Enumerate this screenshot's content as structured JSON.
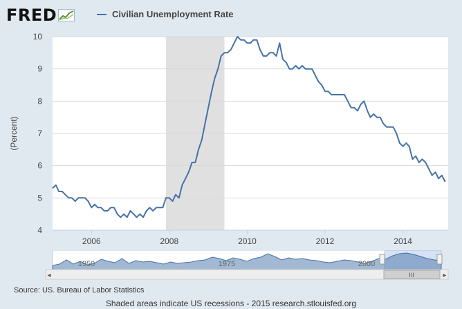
{
  "logo": {
    "text": "FRED"
  },
  "chart_data": {
    "type": "line",
    "ylabel": "(Percent)",
    "ylim": [
      4,
      10
    ],
    "yticks": [
      "4",
      "5",
      "6",
      "7",
      "8",
      "9",
      "10"
    ],
    "xlim": [
      "2005-01-01",
      "2015-03-01"
    ],
    "xticks": [
      {
        "date": "2006-01-01",
        "label": "2006"
      },
      {
        "date": "2008-01-01",
        "label": "2008"
      },
      {
        "date": "2010-01-01",
        "label": "2010"
      },
      {
        "date": "2012-01-01",
        "label": "2012"
      },
      {
        "date": "2014-01-01",
        "label": "2014"
      }
    ],
    "grid": true,
    "legend": "top-left",
    "recessions": [
      {
        "start": "2007-12-01",
        "end": "2009-06-01"
      }
    ],
    "series": [
      {
        "name": "Civilian Unemployment Rate",
        "color": "#4572a7",
        "x": [
          "2005-01",
          "2005-02",
          "2005-03",
          "2005-04",
          "2005-05",
          "2005-06",
          "2005-07",
          "2005-08",
          "2005-09",
          "2005-10",
          "2005-11",
          "2005-12",
          "2006-01",
          "2006-02",
          "2006-03",
          "2006-04",
          "2006-05",
          "2006-06",
          "2006-07",
          "2006-08",
          "2006-09",
          "2006-10",
          "2006-11",
          "2006-12",
          "2007-01",
          "2007-02",
          "2007-03",
          "2007-04",
          "2007-05",
          "2007-06",
          "2007-07",
          "2007-08",
          "2007-09",
          "2007-10",
          "2007-11",
          "2007-12",
          "2008-01",
          "2008-02",
          "2008-03",
          "2008-04",
          "2008-05",
          "2008-06",
          "2008-07",
          "2008-08",
          "2008-09",
          "2008-10",
          "2008-11",
          "2008-12",
          "2009-01",
          "2009-02",
          "2009-03",
          "2009-04",
          "2009-05",
          "2009-06",
          "2009-07",
          "2009-08",
          "2009-09",
          "2009-10",
          "2009-11",
          "2009-12",
          "2010-01",
          "2010-02",
          "2010-03",
          "2010-04",
          "2010-05",
          "2010-06",
          "2010-07",
          "2010-08",
          "2010-09",
          "2010-10",
          "2010-11",
          "2010-12",
          "2011-01",
          "2011-02",
          "2011-03",
          "2011-04",
          "2011-05",
          "2011-06",
          "2011-07",
          "2011-08",
          "2011-09",
          "2011-10",
          "2011-11",
          "2011-12",
          "2012-01",
          "2012-02",
          "2012-03",
          "2012-04",
          "2012-05",
          "2012-06",
          "2012-07",
          "2012-08",
          "2012-09",
          "2012-10",
          "2012-11",
          "2012-12",
          "2013-01",
          "2013-02",
          "2013-03",
          "2013-04",
          "2013-05",
          "2013-06",
          "2013-07",
          "2013-08",
          "2013-09",
          "2013-10",
          "2013-11",
          "2013-12",
          "2014-01",
          "2014-02",
          "2014-03",
          "2014-04",
          "2014-05",
          "2014-06",
          "2014-07",
          "2014-08",
          "2014-09",
          "2014-10",
          "2014-11",
          "2014-12",
          "2015-01",
          "2015-02"
        ],
        "y": [
          5.3,
          5.4,
          5.2,
          5.2,
          5.1,
          5.0,
          5.0,
          4.9,
          5.0,
          5.0,
          5.0,
          4.9,
          4.7,
          4.8,
          4.7,
          4.7,
          4.6,
          4.6,
          4.7,
          4.7,
          4.5,
          4.4,
          4.5,
          4.4,
          4.6,
          4.5,
          4.4,
          4.5,
          4.4,
          4.6,
          4.7,
          4.6,
          4.7,
          4.7,
          4.7,
          5.0,
          5.0,
          4.9,
          5.1,
          5.0,
          5.4,
          5.6,
          5.8,
          6.1,
          6.1,
          6.5,
          6.8,
          7.3,
          7.8,
          8.3,
          8.7,
          9.0,
          9.4,
          9.5,
          9.5,
          9.6,
          9.8,
          10.0,
          9.9,
          9.9,
          9.8,
          9.8,
          9.9,
          9.9,
          9.6,
          9.4,
          9.4,
          9.5,
          9.5,
          9.4,
          9.8,
          9.3,
          9.2,
          9.0,
          9.0,
          9.1,
          9.0,
          9.1,
          9.0,
          9.0,
          9.0,
          8.8,
          8.6,
          8.5,
          8.3,
          8.3,
          8.2,
          8.2,
          8.2,
          8.2,
          8.2,
          8.0,
          7.8,
          7.8,
          7.7,
          7.9,
          8.0,
          7.7,
          7.5,
          7.6,
          7.5,
          7.5,
          7.3,
          7.2,
          7.2,
          7.2,
          7.0,
          6.7,
          6.6,
          6.7,
          6.6,
          6.2,
          6.3,
          6.1,
          6.2,
          6.1,
          5.9,
          5.7,
          5.8,
          5.6,
          5.7,
          5.5
        ]
      }
    ]
  },
  "navigator": {
    "labels": [
      "1950",
      "1975",
      "2000"
    ],
    "scrollbar_grip": "III",
    "left_arrow": "◂",
    "right_arrow": "▸"
  },
  "footer": {
    "source": "Source: US. Bureau of Labor Statistics",
    "note": "Shaded areas indicate US recessions - 2015 research.stlouisfed.org"
  }
}
